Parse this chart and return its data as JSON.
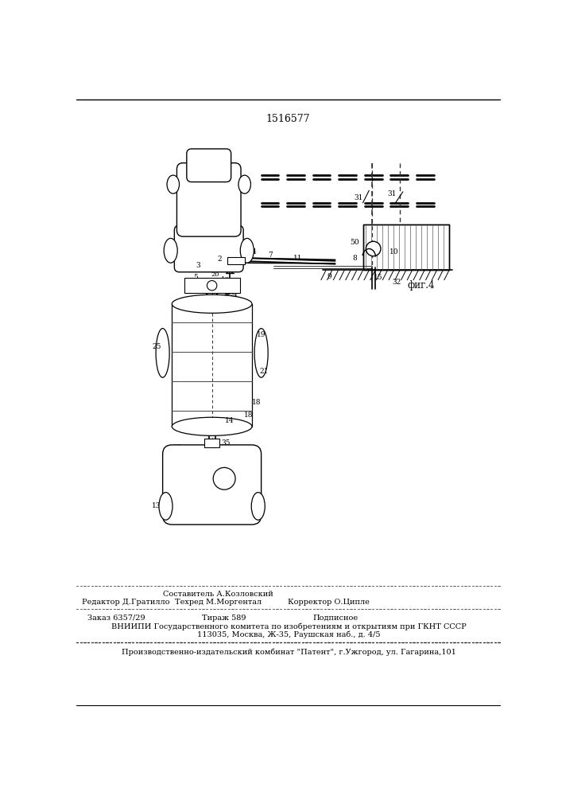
{
  "patent_number": "1516577",
  "fig_label": "фиг.4",
  "background_color": "#ffffff",
  "line_color": "#000000",
  "page_width": 7.07,
  "page_height": 10.0,
  "footer": {
    "editor": "Редактор Д.Гратилло",
    "composer": "Составитель А.Козловский",
    "techred": "Техред М.Моргентал",
    "corrector": "Корректор О.Ципле",
    "order": "Заказ 6357/29",
    "tirazh": "Тираж 589",
    "podpisnoe": "Подписное",
    "vniipи": "ВНИИПИ Государственного комитета по изобретениям и открытиям при ГКНТ СССР",
    "address": "113035, Москва, Ж-35, Раушская наб., д. 4/5",
    "production": "Производственно-издательский комбинат \"Патент\", г.Ужгород, ул. Гагарина,101"
  }
}
